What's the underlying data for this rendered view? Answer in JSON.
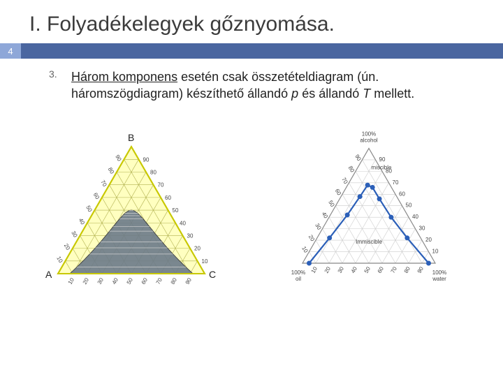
{
  "slide": {
    "title": "I. Folyadékelegyek gőznyomása.",
    "badge": "4",
    "list_number": "3.",
    "paragraph_parts": {
      "p1": "Három komponens",
      "p2": " esetén csak összetételdiagram (ún. háromszögdiagram) készíthető állandó ",
      "p3": "p",
      "p4": " és állandó ",
      "p5": "T",
      "p6": " mellett."
    }
  },
  "colors": {
    "title": "#3b3b3b",
    "badge_bg": "#8ea7d8",
    "bar_bg": "#4a66a0",
    "tri1_outline": "#c8c800",
    "tri1_fill": "#ffffc0",
    "tri1_grid": "#b0b050",
    "tri1_region": "#6b7a8a",
    "tri2_outline": "#888",
    "tri2_grid": "#ccc",
    "tri2_curve": "#2b5fb8",
    "tri2_point": "#2b5fb8"
  },
  "triangle1": {
    "vertices": {
      "A": "A",
      "B": "B",
      "C": "C"
    },
    "ticks": [
      "10",
      "20",
      "30",
      "40",
      "50",
      "60",
      "70",
      "80",
      "90"
    ],
    "right_labels": [
      "90",
      "80",
      "70",
      "60",
      "50",
      "40",
      "30",
      "20",
      "10"
    ],
    "region_tielines": 10
  },
  "triangle2": {
    "top_label": "100%\nalcohol",
    "left_label": "100%\noil",
    "right_label": "100%\nwater",
    "ticks": [
      "10",
      "20",
      "30",
      "40",
      "50",
      "60",
      "70",
      "80",
      "90"
    ],
    "miscible_label": "miscible",
    "immiscible_label": "Immiscible",
    "curve_points": [
      {
        "x": 0.05,
        "y": 0.0
      },
      {
        "x": 0.12,
        "y": 0.22
      },
      {
        "x": 0.22,
        "y": 0.42
      },
      {
        "x": 0.34,
        "y": 0.58
      },
      {
        "x": 0.47,
        "y": 0.68
      },
      {
        "x": 0.58,
        "y": 0.66
      },
      {
        "x": 0.68,
        "y": 0.56
      },
      {
        "x": 0.78,
        "y": 0.4
      },
      {
        "x": 0.87,
        "y": 0.22
      },
      {
        "x": 0.95,
        "y": 0.0
      }
    ]
  }
}
